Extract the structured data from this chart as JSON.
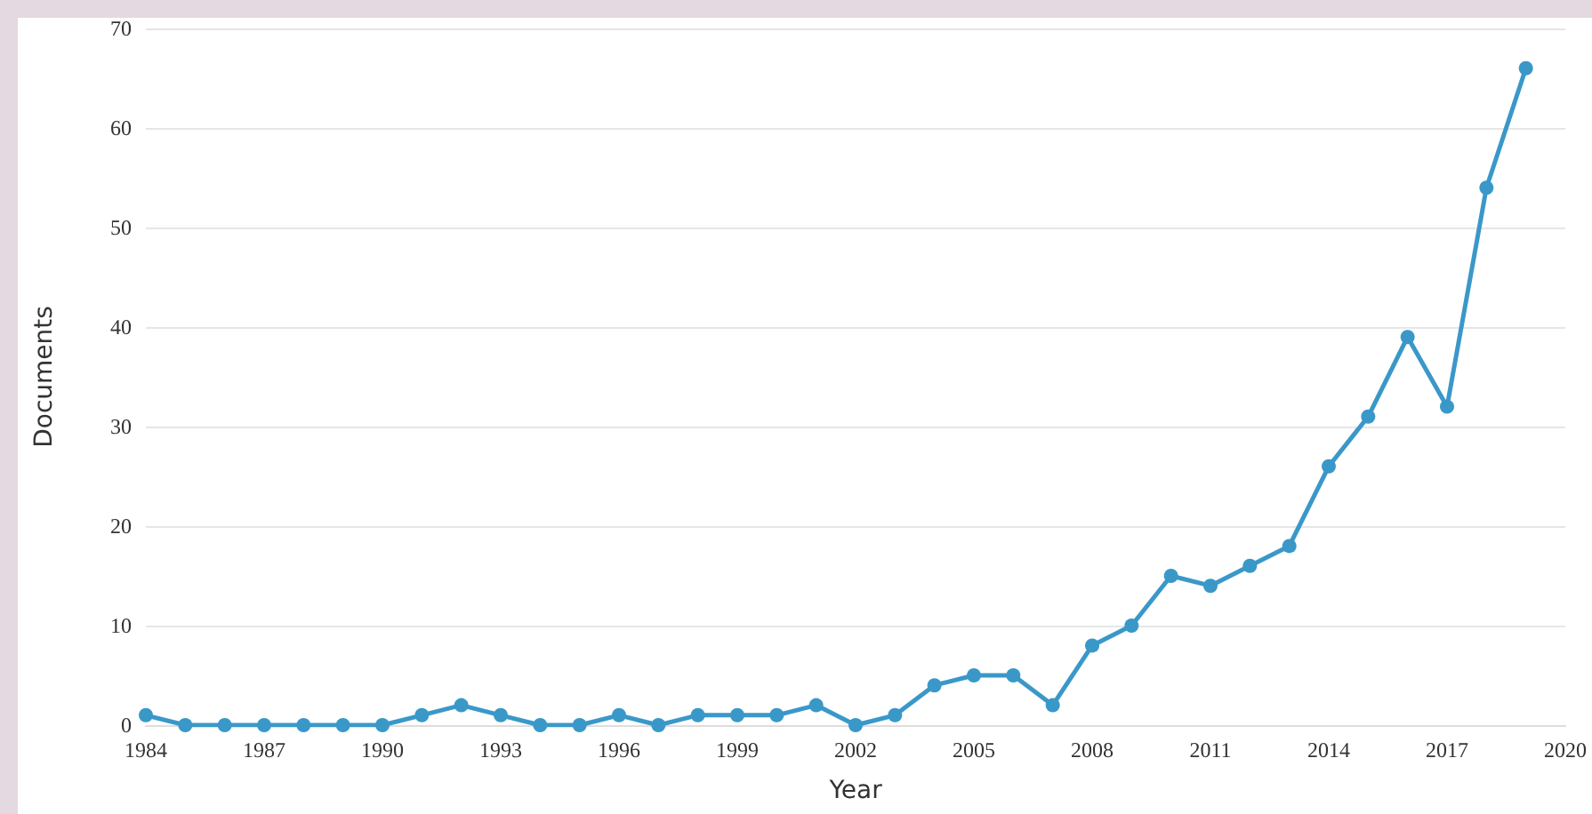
{
  "chart_data": {
    "type": "line",
    "xlabel": "Year",
    "ylabel": "Documents",
    "x": [
      1984,
      1985,
      1986,
      1987,
      1988,
      1989,
      1990,
      1991,
      1992,
      1993,
      1994,
      1995,
      1996,
      1997,
      1998,
      1999,
      2000,
      2001,
      2002,
      2003,
      2004,
      2005,
      2006,
      2007,
      2008,
      2009,
      2010,
      2011,
      2012,
      2013,
      2014,
      2015,
      2016,
      2017,
      2018,
      2019
    ],
    "series": [
      {
        "color": "#3a98c9",
        "values": [
          1,
          0,
          0,
          0,
          0,
          0,
          0,
          1,
          2,
          1,
          0,
          0,
          1,
          0,
          1,
          1,
          1,
          2,
          0,
          1,
          4,
          5,
          5,
          2,
          8,
          10,
          15,
          14,
          16,
          18,
          26,
          31,
          39,
          32,
          54,
          66
        ]
      }
    ],
    "xlim": [
      1984,
      2020
    ],
    "xticks": [
      1984,
      1987,
      1990,
      1993,
      1996,
      1999,
      2002,
      2005,
      2008,
      2011,
      2014,
      2017,
      2020
    ],
    "ylim": [
      0,
      70
    ],
    "yticks": [
      0,
      10,
      20,
      30,
      40,
      50,
      60,
      70
    ],
    "grid": "y",
    "marker": "circle",
    "line_style": "solid"
  }
}
